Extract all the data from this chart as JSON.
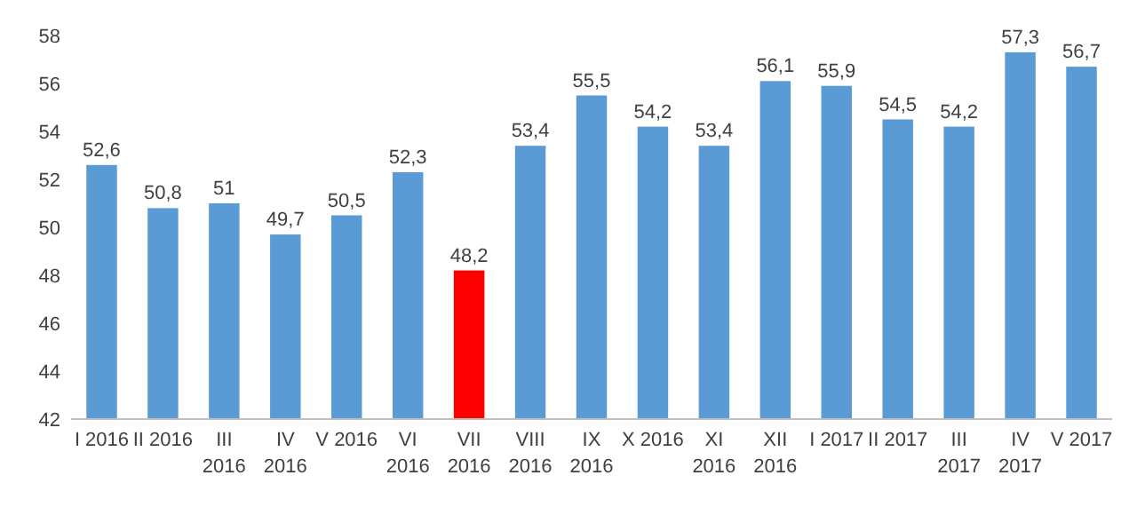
{
  "chart_data": {
    "type": "bar",
    "categories": [
      "I 2016",
      "II 2016",
      "III 2016",
      "IV 2016",
      "V 2016",
      "VI 2016",
      "VII 2016",
      "VIII 2016",
      "IX 2016",
      "X 2016",
      "XI 2016",
      "XII 2016",
      "I 2017",
      "II 2017",
      "III 2017",
      "IV 2017",
      "V 2017"
    ],
    "values": [
      52.6,
      50.8,
      51,
      49.7,
      50.5,
      52.3,
      48.2,
      53.4,
      55.5,
      54.2,
      53.4,
      56.1,
      55.9,
      54.5,
      54.2,
      57.3,
      56.7
    ],
    "colors": [
      "#5b9bd5",
      "#5b9bd5",
      "#5b9bd5",
      "#5b9bd5",
      "#5b9bd5",
      "#5b9bd5",
      "#ff0000",
      "#5b9bd5",
      "#5b9bd5",
      "#5b9bd5",
      "#5b9bd5",
      "#5b9bd5",
      "#5b9bd5",
      "#5b9bd5",
      "#5b9bd5",
      "#5b9bd5",
      "#5b9bd5"
    ],
    "value_labels": [
      "52,6",
      "50,8",
      "51",
      "49,7",
      "50,5",
      "52,3",
      "48,2",
      "53,4",
      "55,5",
      "54,2",
      "53,4",
      "56,1",
      "55,9",
      "54,5",
      "54,2",
      "57,3",
      "56,7"
    ],
    "ylim": [
      42,
      58
    ],
    "yticks": [
      42,
      44,
      46,
      48,
      50,
      52,
      54,
      56,
      58
    ],
    "grid": false
  }
}
